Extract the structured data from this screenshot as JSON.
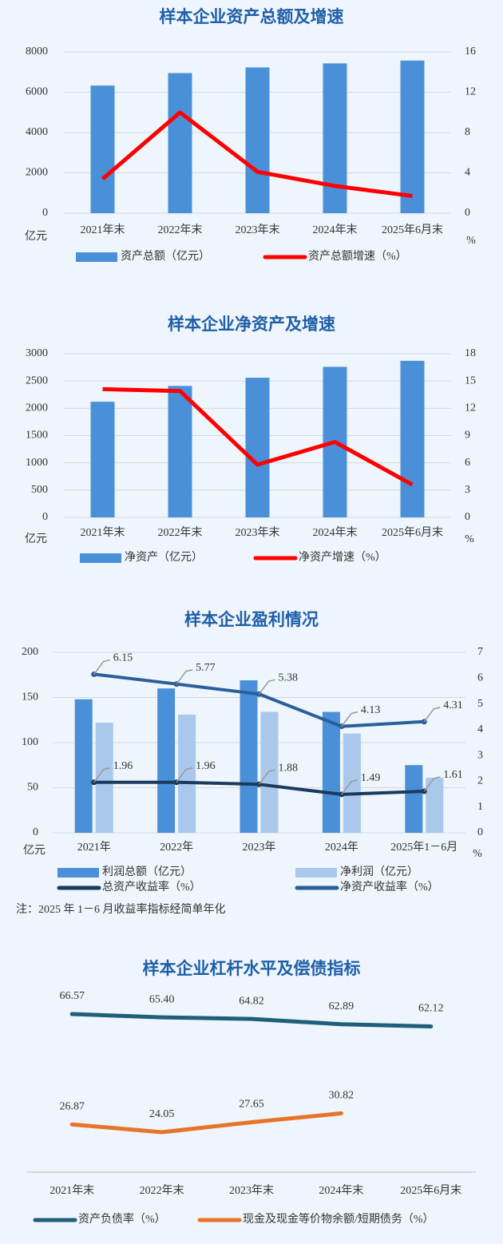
{
  "chart_data": [
    {
      "type": "combo",
      "title": "样本企业资产总额及增速",
      "ylabel": "亿元",
      "y2label": "%",
      "categories": [
        "2021年末",
        "2022年末",
        "2023年末",
        "2024年末",
        "2025年6月末"
      ],
      "series": [
        {
          "name": "资产总额（亿元）",
          "type": "bar",
          "color": "#4a90d9",
          "values": [
            6330,
            6950,
            7230,
            7430,
            7570
          ]
        },
        {
          "name": "资产总额增速（%）",
          "type": "line",
          "axis": "y2",
          "color": "#ff0000",
          "values": [
            3.4,
            10.0,
            4.1,
            2.7,
            1.7
          ]
        }
      ],
      "ylim": [
        0,
        8000
      ],
      "yticks": [
        0,
        2000,
        4000,
        6000,
        8000
      ],
      "y2lim": [
        0,
        16
      ],
      "y2ticks": [
        0,
        4,
        8,
        12,
        16
      ],
      "grid": true
    },
    {
      "type": "combo",
      "title": "样本企业净资产及增速",
      "ylabel": "亿元",
      "y2label": "%",
      "categories": [
        "2021年末",
        "2022年末",
        "2023年末",
        "2024年末",
        "2025年6月末"
      ],
      "series": [
        {
          "name": "净资产（亿元）",
          "type": "bar",
          "color": "#4a90d9",
          "values": [
            2120,
            2410,
            2560,
            2760,
            2870
          ]
        },
        {
          "name": "净资产增速（%）",
          "type": "line",
          "axis": "y2",
          "color": "#ff0000",
          "values": [
            14.1,
            13.9,
            5.8,
            8.3,
            3.6
          ]
        }
      ],
      "ylim": [
        0,
        3000
      ],
      "yticks": [
        0,
        500,
        1000,
        1500,
        2000,
        2500,
        3000
      ],
      "y2lim": [
        0,
        18
      ],
      "y2ticks": [
        0,
        3,
        6,
        9,
        12,
        15,
        18
      ],
      "grid": true
    },
    {
      "type": "combo",
      "title": "样本企业盈利情况",
      "ylabel": "亿元",
      "y2label": "%",
      "categories": [
        "2021年",
        "2022年",
        "2023年",
        "2024年",
        "2025年1－6月"
      ],
      "series": [
        {
          "name": "利润总额（亿元）",
          "type": "bar",
          "color": "#4a90d9",
          "values": [
            148,
            160,
            169,
            134,
            75
          ]
        },
        {
          "name": "净利润（亿元）",
          "type": "bar",
          "color": "#a9c8ec",
          "values": [
            122,
            131,
            134,
            110,
            61
          ]
        },
        {
          "name": "总资产收益率（%）",
          "type": "line",
          "axis": "y2",
          "color": "#1b3a5c",
          "values": [
            1.96,
            1.96,
            1.88,
            1.49,
            1.61
          ],
          "data_labels": true
        },
        {
          "name": "净资产收益率（%）",
          "type": "line",
          "axis": "y2",
          "color": "#2a5f9a",
          "values": [
            6.15,
            5.77,
            5.38,
            4.13,
            4.31
          ],
          "data_labels": true
        }
      ],
      "ylim": [
        0,
        200
      ],
      "yticks": [
        0,
        50,
        100,
        150,
        200
      ],
      "y2lim": [
        0,
        7
      ],
      "y2ticks": [
        0,
        1,
        2,
        3,
        4,
        5,
        6,
        7
      ],
      "grid": true,
      "note": "注：2025 年 1－6 月收益率指标经简单年化"
    },
    {
      "type": "line",
      "title": "样本企业杠杆水平及偿债指标",
      "categories": [
        "2021年末",
        "2022年末",
        "2023年末",
        "2024年末",
        "2025年6月末"
      ],
      "series": [
        {
          "name": "资产负债率（%）",
          "color": "#1f5f7a",
          "values": [
            66.57,
            65.4,
            64.82,
            62.89,
            62.12
          ],
          "value_labels": [
            "66.57",
            "65.40",
            "64.82",
            "62.89",
            "62.12"
          ]
        },
        {
          "name": "现金及现金等价物余额/短期债务（%）",
          "color": "#e8732a",
          "values": [
            26.87,
            24.05,
            27.65,
            30.82,
            null
          ],
          "value_labels": [
            "26.87",
            "24.05",
            "27.65",
            "30.82",
            null
          ]
        }
      ]
    }
  ]
}
